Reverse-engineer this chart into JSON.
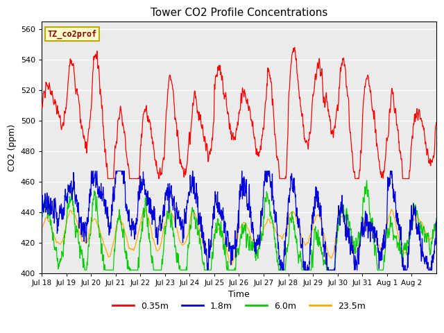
{
  "title": "Tower CO2 Profile Concentrations",
  "xlabel": "Time",
  "ylabel": "CO2 (ppm)",
  "ylim": [
    400,
    565
  ],
  "yticks": [
    400,
    420,
    440,
    460,
    480,
    500,
    520,
    540,
    560
  ],
  "bg_color": "#ebebeb",
  "fig_color": "#ffffff",
  "legend_label": "TZ_co2prof",
  "legend_box_facecolor": "#ffffcc",
  "legend_box_edgecolor": "#bbaa00",
  "legend_text_color": "#880000",
  "line_colors": {
    "0.35m": "#ff0000",
    "1.8m": "#0000dd",
    "6.0m": "#00cc00",
    "23.5m": "#ffaa00"
  },
  "xtick_labels": [
    "Jul 18",
    "Jul 19",
    "Jul 20",
    "Jul 21",
    "Jul 22",
    "Jul 23",
    "Jul 24",
    "Jul 25",
    "Jul 26",
    "Jul 27",
    "Jul 28",
    "Jul 29",
    "Jul 30",
    "Jul 31",
    "Aug 1",
    "Aug 2"
  ],
  "n_days": 16,
  "pts_per_day": 144,
  "seed": 7
}
